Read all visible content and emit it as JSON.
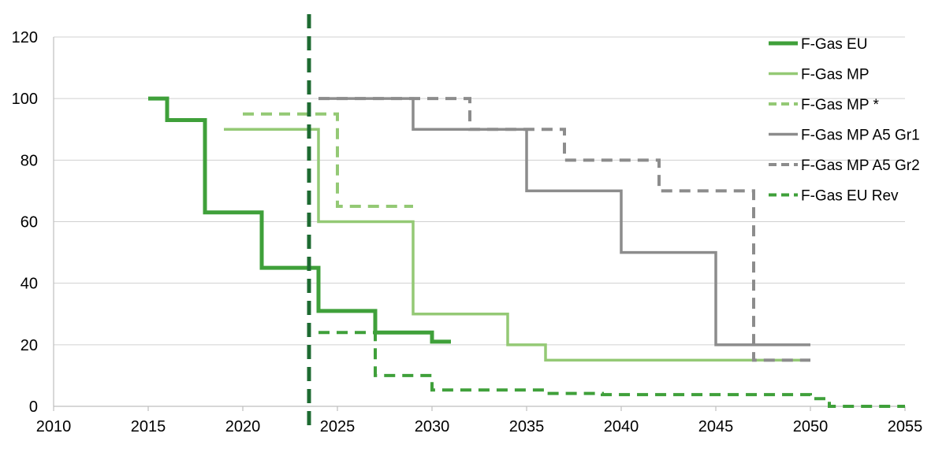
{
  "chart_data": {
    "type": "line",
    "title": "",
    "xlabel": "",
    "ylabel": "",
    "xlim": [
      2010,
      2055
    ],
    "ylim": [
      0,
      120
    ],
    "x_ticks": [
      2010,
      2015,
      2020,
      2025,
      2030,
      2035,
      2040,
      2045,
      2050,
      2055
    ],
    "y_ticks": [
      0,
      20,
      40,
      60,
      80,
      100,
      120
    ],
    "grid": "horizontal",
    "legend_position": "right",
    "reference_line": {
      "x": 2023.5,
      "color": "#1e6b32",
      "style": "dashed"
    },
    "series": [
      {
        "name": "F-Gas EU",
        "color": "#3fa03a",
        "style": "solid-thick",
        "step": true,
        "points": [
          [
            2015,
            100
          ],
          [
            2016,
            93
          ],
          [
            2018,
            63
          ],
          [
            2021,
            45
          ],
          [
            2024,
            31
          ],
          [
            2027,
            24
          ],
          [
            2030,
            21
          ],
          [
            2031,
            21
          ]
        ]
      },
      {
        "name": "F-Gas MP",
        "color": "#94c975",
        "style": "solid",
        "step": true,
        "points": [
          [
            2019,
            90
          ],
          [
            2024,
            60
          ],
          [
            2029,
            30
          ],
          [
            2034,
            20
          ],
          [
            2036,
            15
          ],
          [
            2050,
            15
          ]
        ]
      },
      {
        "name": "F-Gas MP *",
        "color": "#94c975",
        "style": "dashed",
        "step": true,
        "points": [
          [
            2020,
            95
          ],
          [
            2025,
            65
          ],
          [
            2029,
            65
          ]
        ]
      },
      {
        "name": "F-Gas MP A5 Gr1",
        "color": "#8c8c8c",
        "style": "solid",
        "step": true,
        "points": [
          [
            2024,
            100
          ],
          [
            2029,
            90
          ],
          [
            2035,
            70
          ],
          [
            2040,
            50
          ],
          [
            2045,
            20
          ],
          [
            2050,
            20
          ]
        ]
      },
      {
        "name": "F-Gas MP A5 Gr2",
        "color": "#8c8c8c",
        "style": "dashed",
        "step": true,
        "points": [
          [
            2024,
            100
          ],
          [
            2032,
            90
          ],
          [
            2037,
            80
          ],
          [
            2042,
            70
          ],
          [
            2047,
            15
          ],
          [
            2050,
            15
          ]
        ]
      },
      {
        "name": "F-Gas EU Rev",
        "color": "#3fa03a",
        "style": "dashed",
        "step": true,
        "points": [
          [
            2024,
            24
          ],
          [
            2027,
            10
          ],
          [
            2030,
            5.3
          ],
          [
            2036,
            4.2
          ],
          [
            2039,
            3.8
          ],
          [
            2050,
            2.5
          ],
          [
            2051,
            0
          ],
          [
            2055,
            0
          ]
        ]
      }
    ]
  }
}
